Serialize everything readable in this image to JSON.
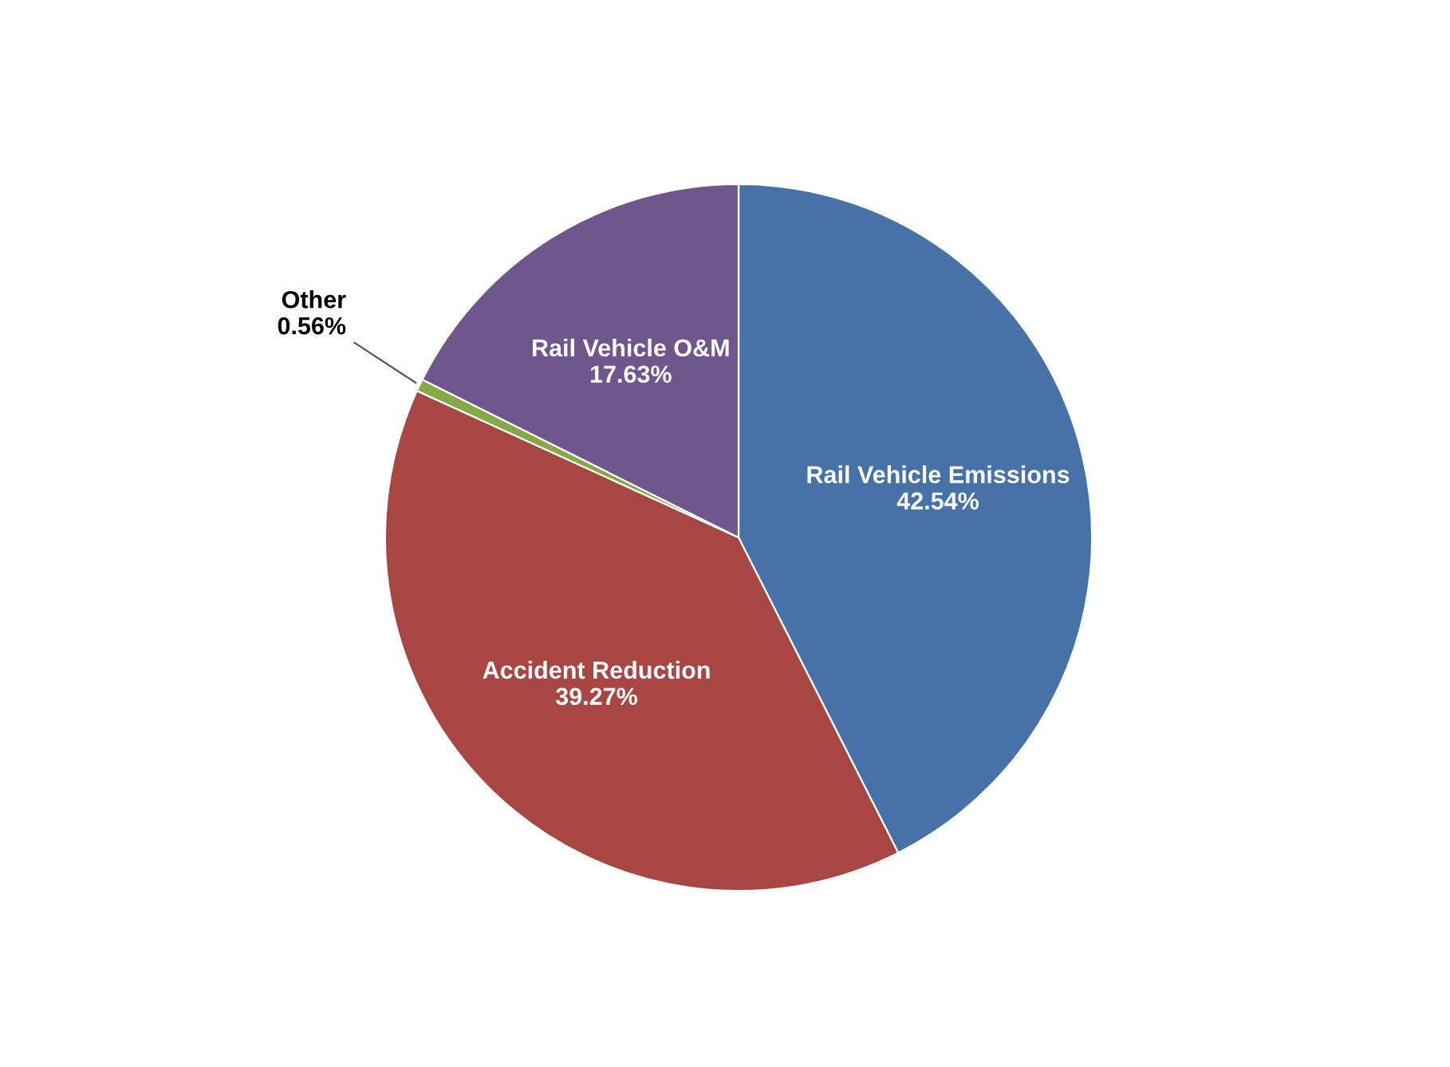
{
  "chart_data": {
    "type": "pie",
    "categories": [
      "Rail Vehicle Emissions",
      "Accident Reduction",
      "Other",
      "Rail Vehicle O&M"
    ],
    "values": [
      42.54,
      39.27,
      0.56,
      17.63
    ],
    "value_labels": [
      "42.54%",
      "39.27%",
      "0.56%",
      "17.63%"
    ],
    "colors": [
      "#4672a8",
      "#a84643",
      "#86a845",
      "#6f568d"
    ],
    "legend": false
  }
}
